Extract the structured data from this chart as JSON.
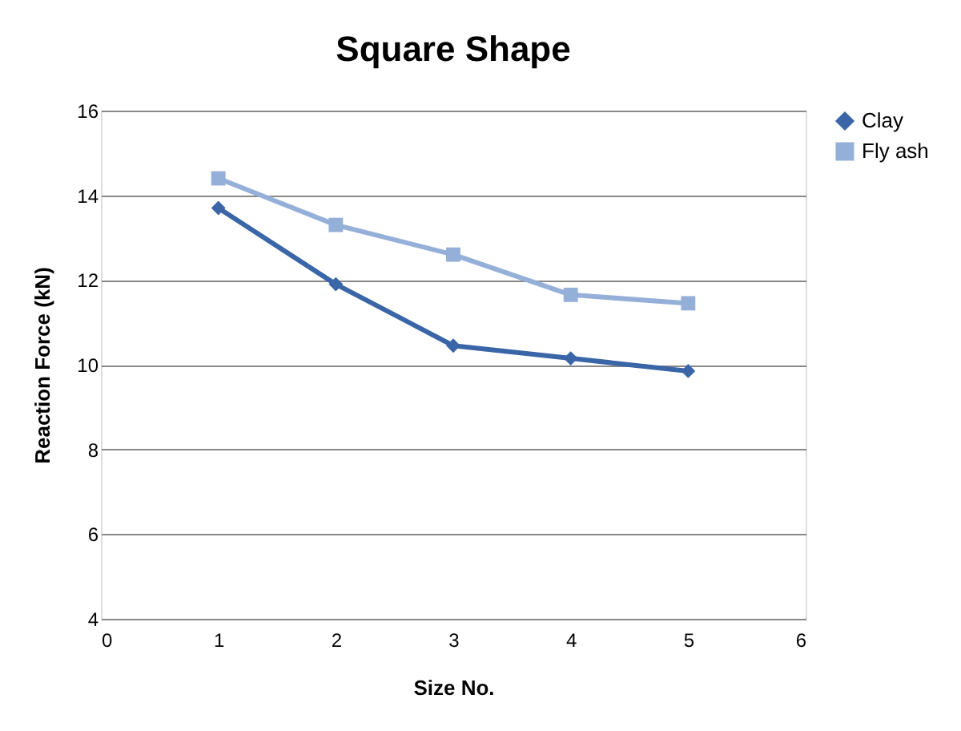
{
  "chart_data": {
    "type": "line",
    "title": "Square Shape",
    "xlabel": "Size No.",
    "ylabel": "Reaction Force (kN)",
    "x": [
      1,
      2,
      3,
      4,
      5
    ],
    "series": [
      {
        "name": "Clay",
        "color": "#3a66a8",
        "marker": "diamond",
        "values": [
          13.7,
          11.9,
          10.45,
          10.15,
          9.85
        ]
      },
      {
        "name": "Fly ash",
        "color": "#95b0d8",
        "marker": "square",
        "values": [
          14.4,
          13.3,
          12.6,
          11.65,
          11.45
        ]
      }
    ],
    "xlim": [
      0,
      6
    ],
    "xticks": [
      0,
      1,
      2,
      3,
      4,
      5,
      6
    ],
    "ylim": [
      4,
      16
    ],
    "yticks": [
      4,
      6,
      8,
      10,
      12,
      14,
      16
    ],
    "grid": "y",
    "legend": "right",
    "line_style": "solid"
  }
}
